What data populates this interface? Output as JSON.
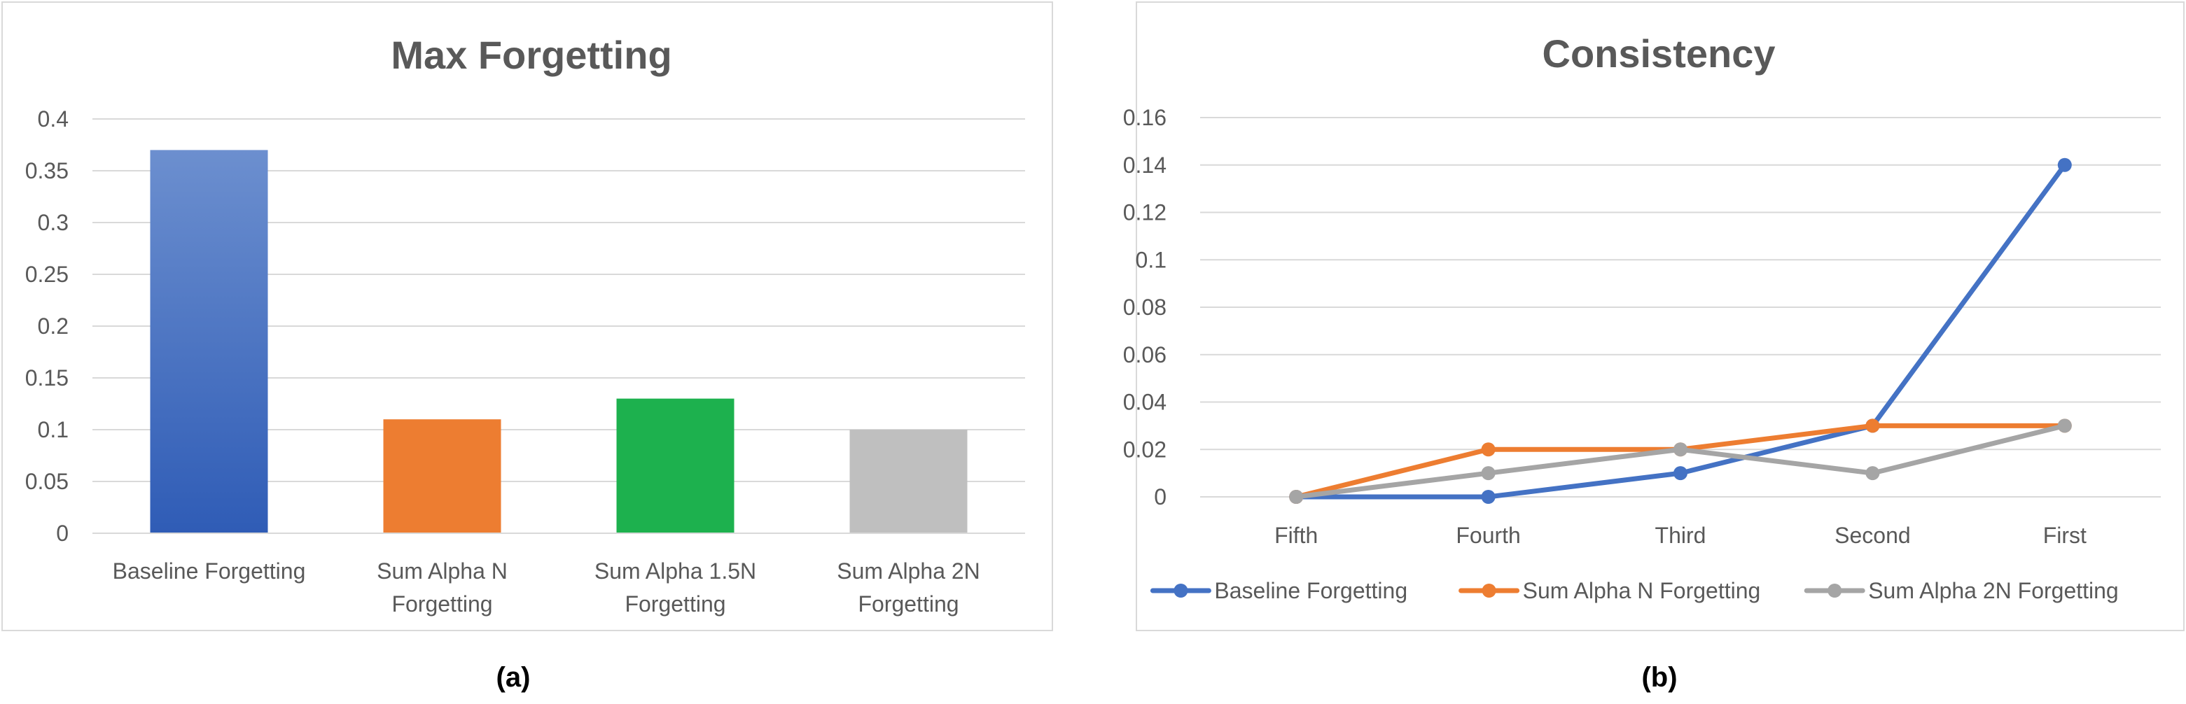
{
  "chart_data": [
    {
      "type": "bar",
      "title": "Max Forgetting",
      "categories": [
        [
          "Baseline Forgetting"
        ],
        [
          "Sum Alpha N",
          "Forgetting"
        ],
        [
          "Sum Alpha 1.5N",
          "Forgetting"
        ],
        [
          "Sum Alpha 2N",
          "Forgetting"
        ]
      ],
      "values": [
        0.37,
        0.11,
        0.13,
        0.1
      ],
      "colors": [
        "#4472c4",
        "#ed7d31",
        "#1db14e",
        "#bfbfbf"
      ],
      "ylim": [
        0,
        0.4
      ],
      "yticks": [
        "0",
        "0.05",
        "0.1",
        "0.15",
        "0.2",
        "0.25",
        "0.3",
        "0.35",
        "0.4"
      ],
      "grid": true,
      "legend": "none"
    },
    {
      "type": "line",
      "title": "Consistency",
      "categories": [
        "Fifth",
        "Fourth",
        "Third",
        "Second",
        "First"
      ],
      "series": [
        {
          "name": "Baseline Forgetting",
          "values": [
            0,
            0,
            0.01,
            0.03,
            0.14
          ],
          "color": "#4472c4"
        },
        {
          "name": "Sum Alpha N Forgetting",
          "values": [
            0,
            0.02,
            0.02,
            0.03,
            0.03
          ],
          "color": "#ed7d31"
        },
        {
          "name": "Sum Alpha 2N Forgetting",
          "values": [
            0,
            0.01,
            0.02,
            0.01,
            0.03
          ],
          "color": "#a5a5a5"
        }
      ],
      "ylim": [
        0,
        0.16
      ],
      "yticks": [
        "0",
        "0.02",
        "0.04",
        "0.06",
        "0.08",
        "0.1",
        "0.12",
        "0.14",
        "0.16"
      ],
      "grid": true,
      "legend": "bottom"
    }
  ],
  "captions": {
    "a": "(a)",
    "b": "(b)"
  }
}
